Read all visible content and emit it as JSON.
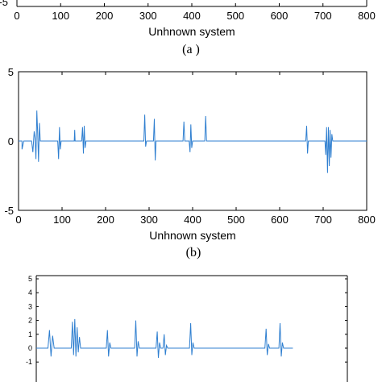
{
  "chart_data": [
    {
      "id": "panel-a",
      "type": "line",
      "partial": true,
      "xlabel": "Unhnown system",
      "caption": "(a )",
      "xlim": [
        0,
        800
      ],
      "x_ticks": [
        "0",
        "100",
        "200",
        "300",
        "400",
        "500",
        "600",
        "700",
        "800"
      ],
      "y_ticks_visible": [
        "-5"
      ],
      "color": "#2f7fd0"
    },
    {
      "id": "panel-b",
      "type": "line",
      "xlabel": "Unhnown system",
      "caption": "(b)",
      "xlim": [
        0,
        800
      ],
      "ylim": [
        -5,
        5
      ],
      "x_ticks": [
        "0",
        "100",
        "200",
        "300",
        "400",
        "500",
        "600",
        "700",
        "800"
      ],
      "y_ticks": [
        "-5",
        "0",
        "5"
      ],
      "color": "#2f7fd0",
      "series": [
        {
          "x": [
            0,
            8,
            8,
            12,
            30,
            33,
            36,
            38,
            40,
            42,
            44,
            46,
            48,
            50,
            90,
            92,
            94,
            96,
            98,
            128,
            129,
            130,
            145,
            147,
            149,
            151,
            153,
            155,
            288,
            290,
            292,
            294,
            310,
            312,
            314,
            316,
            378,
            380,
            382,
            392,
            394,
            396,
            398,
            400,
            428,
            430,
            432,
            660,
            662,
            664,
            666,
            704,
            706,
            708,
            710,
            712,
            714,
            716,
            718,
            720,
            722,
            800
          ],
          "y": [
            0,
            0,
            -0.6,
            0,
            0,
            -0.8,
            0.7,
            0.2,
            -1.3,
            2.2,
            0.5,
            -1.5,
            1.3,
            0,
            0,
            -1.3,
            1.0,
            -0.6,
            0,
            0,
            0.8,
            0,
            0,
            1.0,
            -0.9,
            1.1,
            -0.5,
            0,
            0,
            1.9,
            -0.4,
            0,
            0,
            1.6,
            -1.4,
            0,
            0,
            1.4,
            0,
            0,
            -0.8,
            1.2,
            -0.5,
            0,
            0,
            1.8,
            0,
            0,
            1.1,
            -0.9,
            0,
            0,
            -1.0,
            1.0,
            -2.3,
            1.0,
            -1.8,
            0.8,
            -1.2,
            0.5,
            0,
            0
          ]
        }
      ]
    },
    {
      "id": "panel-c",
      "type": "line",
      "partial": true,
      "ylim": [
        -1,
        5
      ],
      "y_ticks": [
        "5",
        "4",
        "3",
        "2",
        "1",
        "0",
        "-1"
      ],
      "color": "#2f7fd0",
      "series": [
        {
          "x": [
            0,
            30,
            34,
            38,
            42,
            46,
            90,
            93,
            96,
            99,
            102,
            105,
            108,
            111,
            114,
            180,
            183,
            186,
            189,
            192,
            253,
            256,
            259,
            262,
            265,
            308,
            311,
            314,
            317,
            320,
            326,
            329,
            332,
            335,
            338,
            394,
            397,
            400,
            403,
            406,
            588,
            591,
            594,
            597,
            600,
            624,
            627,
            630,
            633,
            636,
            660
          ],
          "y": [
            0,
            0,
            1.3,
            -0.6,
            0.9,
            0,
            0,
            1.9,
            -0.5,
            2.1,
            -0.6,
            1.5,
            -0.3,
            0.8,
            0,
            0,
            1.3,
            -0.6,
            0.4,
            0,
            0,
            2.0,
            -0.6,
            0.5,
            0,
            0,
            1.2,
            -0.7,
            0.4,
            0,
            0,
            1.0,
            -0.5,
            0.2,
            0,
            0,
            1.8,
            -0.5,
            0.4,
            0,
            0,
            1.4,
            -0.5,
            0.3,
            0,
            0,
            1.8,
            -0.6,
            0.4,
            0,
            0
          ]
        }
      ]
    }
  ]
}
